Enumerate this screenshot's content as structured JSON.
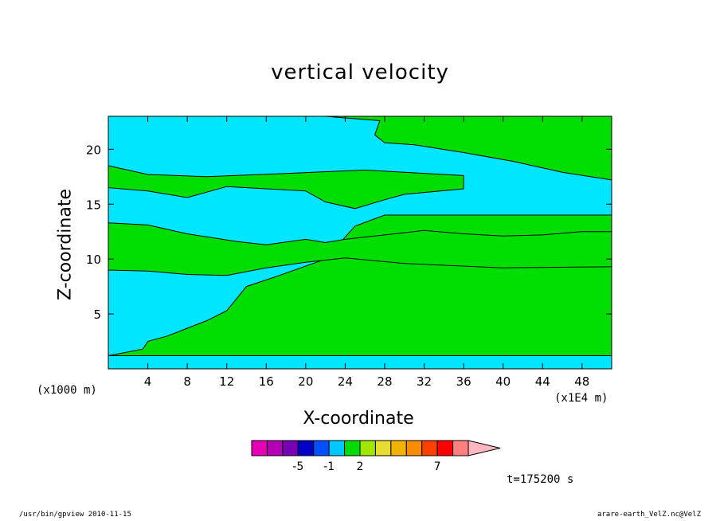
{
  "chart_data": {
    "type": "heatmap",
    "title": "vertical velocity",
    "xlabel": "X-coordinate",
    "ylabel": "Z-coordinate",
    "x_unit": "(x1E4 m)",
    "y_unit": "(x1000 m)",
    "xlim": [
      0,
      51
    ],
    "ylim": [
      0,
      23
    ],
    "x_ticks": [
      4,
      8,
      12,
      16,
      20,
      24,
      28,
      32,
      36,
      40,
      44,
      48
    ],
    "y_ticks": [
      5,
      10,
      15,
      20
    ],
    "background_color": "#00e6ff",
    "region_color": "#00dd00",
    "regions": [
      {
        "points": [
          [
            0,
            1.2
          ],
          [
            51,
            1.2
          ],
          [
            51,
            14
          ],
          [
            28,
            14
          ],
          [
            25,
            13
          ],
          [
            22,
            10
          ],
          [
            17,
            8.4
          ],
          [
            14,
            7.5
          ],
          [
            12,
            5.3
          ],
          [
            10,
            4.4
          ],
          [
            8,
            3.7
          ],
          [
            6,
            3
          ],
          [
            4,
            2.5
          ],
          [
            3.5,
            1.8
          ]
        ]
      },
      {
        "points": [
          [
            22,
            23
          ],
          [
            51,
            23
          ],
          [
            51,
            17.2
          ],
          [
            46,
            17.9
          ],
          [
            41,
            18.9
          ],
          [
            36,
            19.7
          ],
          [
            31,
            20.4
          ],
          [
            28,
            20.6
          ],
          [
            27,
            21.3
          ],
          [
            27.5,
            22.6
          ]
        ]
      },
      {
        "points": [
          [
            0,
            18.5
          ],
          [
            0,
            16.5
          ],
          [
            4,
            16.2
          ],
          [
            8,
            15.6
          ],
          [
            12,
            16.6
          ],
          [
            20,
            16.2
          ],
          [
            22,
            15.2
          ],
          [
            25,
            14.6
          ],
          [
            28,
            15.4
          ],
          [
            30,
            15.9
          ],
          [
            36,
            16.4
          ],
          [
            36,
            17.6
          ],
          [
            30,
            17.9
          ],
          [
            26,
            18.1
          ],
          [
            18,
            17.8
          ],
          [
            10,
            17.5
          ],
          [
            4,
            17.7
          ]
        ]
      },
      {
        "points": [
          [
            0,
            13.3
          ],
          [
            4,
            13.1
          ],
          [
            8,
            12.3
          ],
          [
            13,
            11.6
          ],
          [
            16,
            11.3
          ],
          [
            20,
            11.8
          ],
          [
            22,
            11.5
          ],
          [
            24,
            11.8
          ],
          [
            28,
            12.2
          ],
          [
            32,
            12.6
          ],
          [
            36,
            12.3
          ],
          [
            40,
            12.1
          ],
          [
            44,
            12.2
          ],
          [
            48,
            12.5
          ],
          [
            51,
            12.5
          ],
          [
            51,
            9.3
          ],
          [
            40,
            9.2
          ],
          [
            30,
            9.6
          ],
          [
            24,
            10.1
          ],
          [
            20,
            9.7
          ],
          [
            16,
            9.2
          ],
          [
            12,
            8.5
          ],
          [
            8,
            8.6
          ],
          [
            4,
            8.9
          ],
          [
            0,
            9
          ]
        ]
      }
    ],
    "colorbar": {
      "colors": [
        "#e600b4",
        "#b400b4",
        "#7800b4",
        "#0000c8",
        "#0050ff",
        "#00c8ff",
        "#00dc00",
        "#a0e600",
        "#e6dc32",
        "#f0b400",
        "#fa8c00",
        "#ff4000",
        "#ff0000",
        "#ff8080",
        "#ffb6c1"
      ],
      "labels": [
        {
          "text": "-5",
          "index": 3
        },
        {
          "text": "-1",
          "index": 5
        },
        {
          "text": "2",
          "index": 7
        },
        {
          "text": "7",
          "index": 12
        }
      ]
    },
    "time_label": "t=175200 s"
  },
  "footer": {
    "left": "/usr/bin/gpview   2010-11-15",
    "right": "arare-earth_VelZ.nc@VelZ"
  }
}
